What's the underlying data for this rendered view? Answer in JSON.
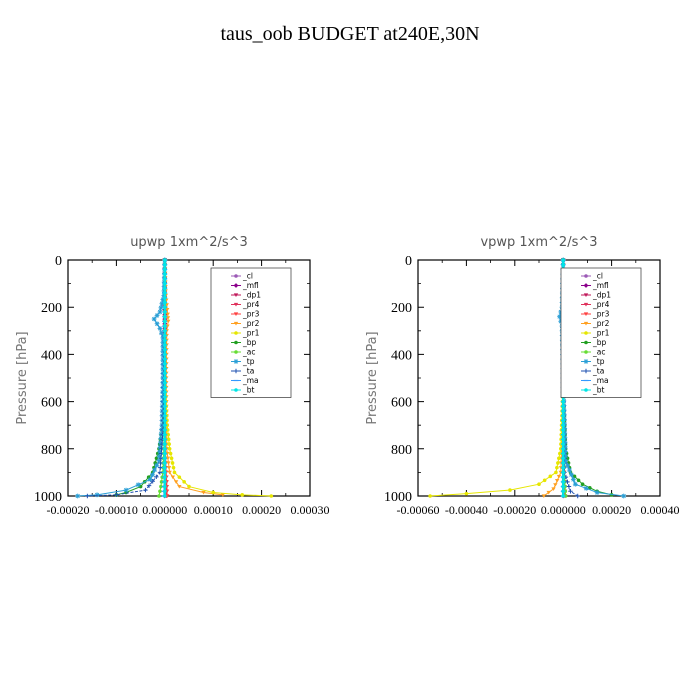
{
  "title": "taus_oob  BUDGET at240E,30N",
  "colors": {
    "_cl": "#9b59b6",
    "_mfl": "#8b008b",
    "_dp1": "#c0185a",
    "_pr4": "#e0305a",
    "_pr3": "#ff4040",
    "_pr2": "#ffa020",
    "_pr1": "#e6e600",
    "_bp": "#22a022",
    "_ac": "#66dd33",
    "_tp": "#2a9fd6",
    "_ta": "#1e50b0",
    "_ma": "#3399ff",
    "_bt": "#00e5e5"
  },
  "chart_data": [
    {
      "type": "line",
      "title": "upwp   1xm^2/s^3",
      "ylabel": "Pressure [hPa]",
      "xlim": [
        -0.0002,
        0.0003
      ],
      "ylim": [
        1000,
        0
      ],
      "yticks": [
        "0",
        "200",
        "400",
        "600",
        "800",
        "1000"
      ],
      "xticks": [
        "-0.00020",
        "-0.00010",
        "0.000000",
        "0.00010",
        "0.00020",
        "0.00030"
      ],
      "legend_position": "top-right",
      "series": [
        {
          "name": "_cl",
          "points": [
            [
              0,
              0
            ],
            [
              0,
              500
            ],
            [
              0,
              1000
            ]
          ]
        },
        {
          "name": "_mfl",
          "points": [
            [
              0,
              0
            ],
            [
              0,
              250
            ],
            [
              0,
              500
            ],
            [
              0,
              800
            ],
            [
              0,
              1000
            ]
          ]
        },
        {
          "name": "_dp1",
          "points": [
            [
              0,
              0
            ],
            [
              0,
              500
            ],
            [
              2e-06,
              900
            ],
            [
              4e-06,
              1000
            ]
          ]
        },
        {
          "name": "_pr4",
          "points": [
            [
              0,
              0
            ],
            [
              0,
              500
            ],
            [
              2e-06,
              900
            ],
            [
              3e-06,
              1000
            ]
          ]
        },
        {
          "name": "_pr3",
          "points": [
            [
              0,
              0
            ],
            [
              0,
              500
            ],
            [
              0,
              800
            ],
            [
              4e-06,
              940
            ],
            [
              5e-06,
              1000
            ]
          ]
        },
        {
          "name": "_pr2",
          "points": [
            [
              0,
              0
            ],
            [
              2e-06,
              150
            ],
            [
              6e-06,
              230
            ],
            [
              7e-06,
              260
            ],
            [
              4e-06,
              300
            ],
            [
              3e-06,
              500
            ],
            [
              4e-06,
              800
            ],
            [
              1e-05,
              900
            ],
            [
              3e-05,
              960
            ],
            [
              8e-05,
              985
            ],
            [
              0.00012,
              995
            ]
          ]
        },
        {
          "name": "_pr1",
          "points": [
            [
              0,
              0
            ],
            [
              0,
              500
            ],
            [
              5e-06,
              700
            ],
            [
              1e-05,
              800
            ],
            [
              2e-05,
              900
            ],
            [
              5e-05,
              960
            ],
            [
              0.0001,
              985
            ],
            [
              0.00016,
              995
            ],
            [
              0.00022,
              1000
            ]
          ]
        },
        {
          "name": "_bp",
          "points": [
            [
              0,
              0
            ],
            [
              0,
              500
            ],
            [
              -5e-06,
              700
            ],
            [
              -1.2e-05,
              800
            ],
            [
              -2.5e-05,
              900
            ],
            [
              -5e-05,
              960
            ],
            [
              -8e-05,
              985
            ],
            [
              -0.0001,
              995
            ]
          ]
        },
        {
          "name": "_ac",
          "points": [
            [
              0,
              0
            ],
            [
              0,
              500
            ],
            [
              -2e-06,
              800
            ],
            [
              -4e-06,
              900
            ],
            [
              -8e-06,
              960
            ],
            [
              -1.2e-05,
              1000
            ]
          ]
        },
        {
          "name": "_tp",
          "points": [
            [
              0,
              0
            ],
            [
              -2e-06,
              150
            ],
            [
              -1e-05,
              220
            ],
            [
              -2.2e-05,
              250
            ],
            [
              -1e-05,
              290
            ],
            [
              -4e-06,
              330
            ],
            [
              -4e-06,
              500
            ],
            [
              -6e-06,
              700
            ],
            [
              -1.2e-05,
              850
            ],
            [
              -3e-05,
              930
            ],
            [
              -8e-05,
              975
            ],
            [
              -0.00014,
              995
            ],
            [
              -0.00018,
              1000
            ]
          ]
        },
        {
          "name": "_ta",
          "points": [
            [
              0,
              0
            ],
            [
              0,
              200
            ],
            [
              -2e-06,
              400
            ],
            [
              -3e-06,
              700
            ],
            [
              -1e-05,
              900
            ],
            [
              -4e-05,
              975
            ],
            [
              -0.0001,
              995
            ],
            [
              -0.00016,
              1000
            ]
          ]
        },
        {
          "name": "_ma",
          "points": [
            [
              0,
              0
            ],
            [
              0,
              500
            ],
            [
              0,
              800
            ],
            [
              -2e-06,
              1000
            ]
          ]
        },
        {
          "name": "_bt",
          "points": [
            [
              0,
              0
            ],
            [
              0,
              500
            ],
            [
              0,
              1000
            ]
          ]
        }
      ]
    },
    {
      "type": "line",
      "title": "vpwp   1xm^2/s^3",
      "ylabel": "Pressure [hPa]",
      "xlim": [
        -0.0006,
        0.0004
      ],
      "ylim": [
        1000,
        0
      ],
      "yticks": [
        "0",
        "200",
        "400",
        "600",
        "800",
        "1000"
      ],
      "xticks": [
        "-0.00060",
        "-0.00040",
        "-0.00020",
        "0.000000",
        "0.00020",
        "0.00040"
      ],
      "legend_position": "top-right",
      "series": [
        {
          "name": "_cl",
          "points": [
            [
              0,
              0
            ],
            [
              0,
              500
            ],
            [
              0,
              1000
            ]
          ]
        },
        {
          "name": "_mfl",
          "points": [
            [
              0,
              0
            ],
            [
              0,
              250
            ],
            [
              0,
              500
            ],
            [
              0,
              800
            ],
            [
              0,
              1000
            ]
          ]
        },
        {
          "name": "_dp1",
          "points": [
            [
              0,
              0
            ],
            [
              0,
              500
            ],
            [
              4e-06,
              900
            ],
            [
              8e-06,
              1000
            ]
          ]
        },
        {
          "name": "_pr4",
          "points": [
            [
              0,
              0
            ],
            [
              0,
              500
            ],
            [
              3e-06,
              900
            ],
            [
              6e-06,
              1000
            ]
          ]
        },
        {
          "name": "_pr3",
          "points": [
            [
              0,
              0
            ],
            [
              0,
              500
            ],
            [
              3e-06,
              900
            ],
            [
              6e-06,
              1000
            ]
          ]
        },
        {
          "name": "_pr2",
          "points": [
            [
              0,
              0
            ],
            [
              5e-06,
              200
            ],
            [
              1e-05,
              240
            ],
            [
              4e-06,
              300
            ],
            [
              4e-06,
              500
            ],
            [
              -1e-05,
              900
            ],
            [
              -4e-05,
              970
            ],
            [
              -8e-05,
              1000
            ]
          ]
        },
        {
          "name": "_pr1",
          "points": [
            [
              0,
              0
            ],
            [
              0,
              500
            ],
            [
              -1e-05,
              800
            ],
            [
              -3e-05,
              900
            ],
            [
              -0.0001,
              950
            ],
            [
              -0.00022,
              975
            ],
            [
              -0.0004,
              990
            ],
            [
              -0.00055,
              1000
            ]
          ]
        },
        {
          "name": "_bp",
          "points": [
            [
              0,
              0
            ],
            [
              0,
              500
            ],
            [
              1e-05,
              800
            ],
            [
              3e-05,
              900
            ],
            [
              8e-05,
              950
            ],
            [
              0.00014,
              980
            ],
            [
              0.0002,
              995
            ]
          ]
        },
        {
          "name": "_ac",
          "points": [
            [
              0,
              0
            ],
            [
              0,
              500
            ],
            [
              4e-06,
              900
            ],
            [
              1e-05,
              1000
            ]
          ]
        },
        {
          "name": "_tp",
          "points": [
            [
              0,
              0
            ],
            [
              -5e-06,
              200
            ],
            [
              -1.5e-05,
              240
            ],
            [
              -5e-06,
              280
            ],
            [
              0,
              500
            ],
            [
              1e-05,
              850
            ],
            [
              5e-05,
              950
            ],
            [
              0.00014,
              985
            ],
            [
              0.00025,
              1000
            ]
          ]
        },
        {
          "name": "_ta",
          "points": [
            [
              0,
              0
            ],
            [
              0,
              500
            ],
            [
              5e-06,
              900
            ],
            [
              3e-05,
              980
            ],
            [
              6e-05,
              1000
            ]
          ]
        },
        {
          "name": "_ma",
          "points": [
            [
              0,
              0
            ],
            [
              0,
              500
            ],
            [
              0,
              1000
            ]
          ]
        },
        {
          "name": "_bt",
          "points": [
            [
              0,
              0
            ],
            [
              0,
              500
            ],
            [
              0,
              1000
            ]
          ]
        }
      ]
    }
  ]
}
